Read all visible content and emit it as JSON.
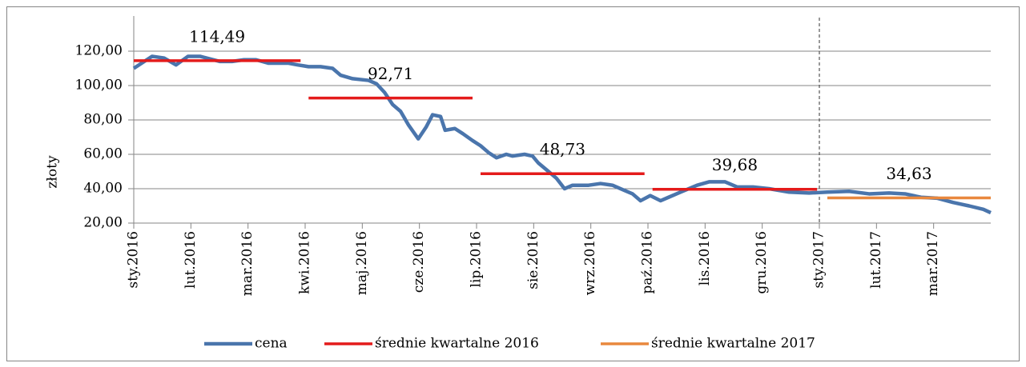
{
  "chart_data": {
    "type": "line",
    "y_label": "złoty",
    "xlim": [
      0,
      15
    ],
    "xticks": [
      {
        "value": 0,
        "label": "sty.2016"
      },
      {
        "value": 1,
        "label": "lut.2016"
      },
      {
        "value": 2,
        "label": "mar.2016"
      },
      {
        "value": 3,
        "label": "kwi.2016"
      },
      {
        "value": 4,
        "label": "maj.2016"
      },
      {
        "value": 5,
        "label": "cze.2016"
      },
      {
        "value": 6,
        "label": "lip.2016"
      },
      {
        "value": 7,
        "label": "sie.2016"
      },
      {
        "value": 8,
        "label": "wrz.2016"
      },
      {
        "value": 9,
        "label": "paź.2016"
      },
      {
        "value": 10,
        "label": "lis.2016"
      },
      {
        "value": 11,
        "label": "gru.2016"
      },
      {
        "value": 12,
        "label": "sty.2017"
      },
      {
        "value": 13,
        "label": "lut.2017"
      },
      {
        "value": 14,
        "label": "mar.2017"
      }
    ],
    "ylim": [
      20,
      120
    ],
    "yticks": [
      {
        "value": 20,
        "label": "20,00"
      },
      {
        "value": 40,
        "label": "40,00"
      },
      {
        "value": 60,
        "label": "60,00"
      },
      {
        "value": 80,
        "label": "80,00"
      },
      {
        "value": 100,
        "label": "100,00"
      },
      {
        "value": 120,
        "label": "120,00"
      }
    ],
    "grid": true,
    "legend": "bottom",
    "series": [
      {
        "name": "cena",
        "color": "#4a75ac",
        "x": [
          0,
          0.32,
          0.53,
          0.74,
          0.95,
          1.16,
          1.51,
          1.72,
          1.93,
          2.14,
          2.36,
          2.71,
          2.87,
          3.06,
          3.27,
          3.48,
          3.62,
          3.83,
          4.11,
          4.25,
          4.39,
          4.53,
          4.67,
          4.81,
          4.98,
          5.12,
          5.23,
          5.37,
          5.45,
          5.62,
          5.76,
          5.93,
          6.07,
          6.21,
          6.35,
          6.52,
          6.63,
          6.84,
          6.98,
          7.08,
          7.26,
          7.4,
          7.54,
          7.68,
          7.96,
          8.17,
          8.38,
          8.59,
          8.73,
          8.87,
          9.04,
          9.22,
          9.36,
          9.57,
          9.86,
          10.07,
          10.35,
          10.56,
          10.84,
          11.12,
          11.47,
          11.82,
          12.14,
          12.52,
          12.87,
          13.22,
          13.5,
          13.78,
          14.06,
          14.34,
          14.62,
          14.87,
          15
        ],
        "values": [
          110,
          117,
          116,
          112,
          117,
          117,
          114,
          114,
          115,
          115,
          113,
          113,
          112,
          111,
          111,
          110,
          106,
          104,
          103,
          101,
          96,
          89,
          85,
          77,
          69,
          76,
          83,
          82,
          74,
          75,
          72,
          68,
          65,
          61,
          58,
          60,
          59,
          60,
          59,
          55,
          50,
          46,
          40,
          42,
          42,
          43,
          42,
          39,
          37,
          33,
          36,
          33,
          35,
          38,
          42,
          44,
          44,
          41,
          41,
          40,
          38,
          37.5,
          38,
          38.5,
          37,
          37.5,
          37,
          35,
          34.5,
          32,
          30,
          28,
          26
        ]
      },
      {
        "name": "średnie kwartalne 2016",
        "color": "#e41b1b",
        "segments": [
          {
            "x": [
              0,
              2.92
            ],
            "value": 114.49,
            "value_label": "114,49"
          },
          {
            "x": [
              3.06,
              5.93
            ],
            "value": 92.71,
            "value_label": "92,71"
          },
          {
            "x": [
              6.07,
              8.94
            ],
            "value": 48.73,
            "value_label": "48,73"
          },
          {
            "x": [
              9.08,
              11.96
            ],
            "value": 39.68,
            "value_label": "39,68"
          }
        ]
      },
      {
        "name": "średnie kwartalne 2017",
        "color": "#e9883e",
        "segments": [
          {
            "x": [
              12.14,
              15
            ],
            "value": 34.63,
            "value_label": "34,63"
          }
        ]
      }
    ]
  }
}
